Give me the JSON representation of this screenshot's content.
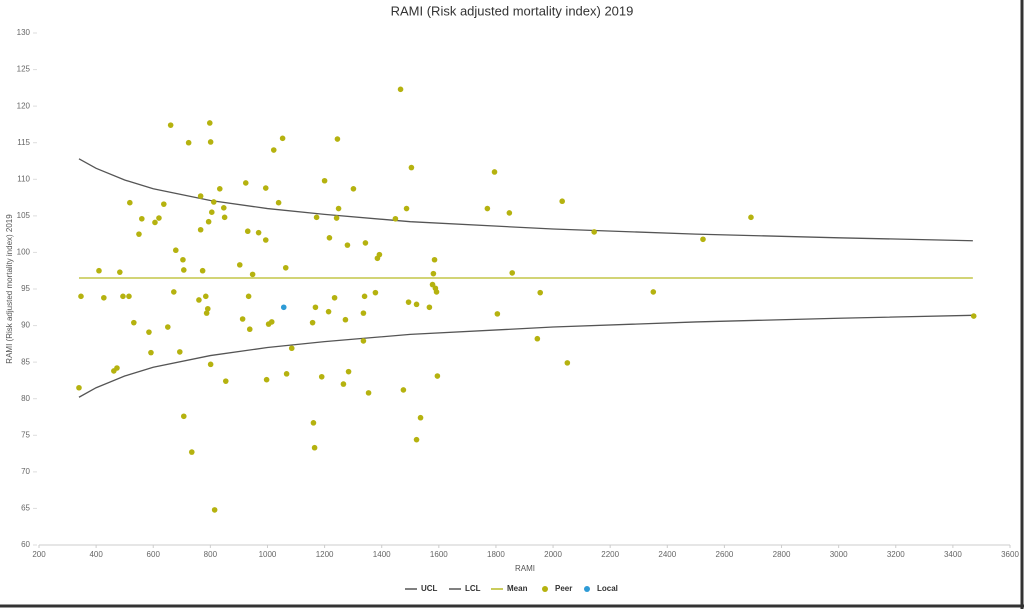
{
  "chart_data": {
    "type": "scatter",
    "title": "RAMI (Risk adjusted mortality index) 2019",
    "x_label": "RAMI",
    "y_label": "RAMI (Risk adjusted mortality index) 2019",
    "xlim": [
      200,
      3600
    ],
    "ylim": [
      60,
      130
    ],
    "xticks": [
      200,
      400,
      600,
      800,
      1000,
      1200,
      1400,
      1600,
      1800,
      2000,
      2200,
      2400,
      2600,
      2800,
      3000,
      3200,
      3400,
      3600
    ],
    "yticks": [
      60,
      65,
      70,
      75,
      80,
      85,
      90,
      95,
      100,
      105,
      110,
      115,
      120,
      125,
      130
    ],
    "legend": "bottom",
    "series": [
      {
        "name": "UCL",
        "kind": "line",
        "color": "#555555",
        "x": [
          340,
          400,
          500,
          600,
          800,
          1000,
          1200,
          1500,
          2000,
          2500,
          3000,
          3470
        ],
        "values": [
          112.8,
          111.5,
          109.9,
          108.7,
          107.1,
          106.0,
          105.2,
          104.2,
          103.2,
          102.5,
          102.0,
          101.6
        ]
      },
      {
        "name": "LCL",
        "kind": "line",
        "color": "#555555",
        "x": [
          340,
          400,
          500,
          600,
          800,
          1000,
          1200,
          1500,
          2000,
          2500,
          3000,
          3470
        ],
        "values": [
          80.2,
          81.5,
          83.1,
          84.3,
          85.9,
          87.0,
          87.8,
          88.8,
          89.8,
          90.5,
          91.0,
          91.4
        ]
      },
      {
        "name": "Mean",
        "kind": "line",
        "color": "#b8bb25",
        "x": [
          340,
          3470
        ],
        "values": [
          96.5,
          96.5
        ]
      },
      {
        "name": "Peer",
        "kind": "scatter",
        "color": "#b5b20f",
        "x": [
          347,
          340,
          410,
          427,
          462,
          473,
          483,
          494,
          515,
          518,
          532,
          550,
          560,
          585,
          592,
          606,
          620,
          637,
          651,
          661,
          672,
          679,
          693,
          704,
          707,
          707,
          724,
          735,
          760,
          766,
          766,
          773,
          784,
          787,
          791,
          794,
          798,
          801,
          801,
          805,
          812,
          815,
          833,
          847,
          850,
          854,
          903,
          913,
          924,
          931,
          934,
          938,
          948,
          969,
          994,
          994,
          997,
          1004,
          1015,
          1022,
          1039,
          1053,
          1064,
          1067,
          1085,
          1158,
          1161,
          1165,
          1168,
          1172,
          1190,
          1200,
          1214,
          1217,
          1235,
          1242,
          1245,
          1249,
          1266,
          1273,
          1280,
          1284,
          1301,
          1336,
          1336,
          1340,
          1343,
          1354,
          1378,
          1385,
          1392,
          1448,
          1466,
          1476,
          1487,
          1494,
          1504,
          1522,
          1536,
          1522,
          1567,
          1578,
          1581,
          1585,
          1588,
          1592,
          1595,
          1770,
          1795,
          1805,
          1847,
          1857,
          1945,
          1955,
          2032,
          2050,
          2144,
          2351,
          2525,
          2693,
          3473
        ],
        "values": [
          94.0,
          81.5,
          97.5,
          93.8,
          83.8,
          84.2,
          97.3,
          94.0,
          94.0,
          106.8,
          90.4,
          102.5,
          104.6,
          89.1,
          86.3,
          104.1,
          104.7,
          106.6,
          89.8,
          117.4,
          94.6,
          100.3,
          86.4,
          99.0,
          97.6,
          77.6,
          115.0,
          72.7,
          93.5,
          107.7,
          103.1,
          97.5,
          94.0,
          91.7,
          92.3,
          104.2,
          117.7,
          84.7,
          115.1,
          105.5,
          106.9,
          64.8,
          108.7,
          106.1,
          104.8,
          82.4,
          98.3,
          90.9,
          109.5,
          102.9,
          94.0,
          89.5,
          97.0,
          102.7,
          108.8,
          101.7,
          82.6,
          90.2,
          90.5,
          114.0,
          106.8,
          115.6,
          97.9,
          83.4,
          86.9,
          90.4,
          76.7,
          73.3,
          92.5,
          104.8,
          83.0,
          109.8,
          91.9,
          102.0,
          93.8,
          104.7,
          115.5,
          106.0,
          82.0,
          90.8,
          101.0,
          83.7,
          108.7,
          87.9,
          91.7,
          94.0,
          101.3,
          80.8,
          94.5,
          99.2,
          99.7,
          104.6,
          122.3,
          81.2,
          106.0,
          93.2,
          111.6,
          92.9,
          77.4,
          74.4,
          92.5,
          95.6,
          97.1,
          99.0,
          95.1,
          94.6,
          83.1,
          106.0,
          111.0,
          91.6,
          105.4,
          97.2,
          88.2,
          94.5,
          107.0,
          84.9,
          102.8,
          94.6,
          101.8,
          104.8,
          91.3
        ]
      },
      {
        "name": "Local",
        "kind": "scatter",
        "color": "#2e9bd6",
        "x": [
          1057
        ],
        "values": [
          92.5
        ]
      }
    ]
  }
}
